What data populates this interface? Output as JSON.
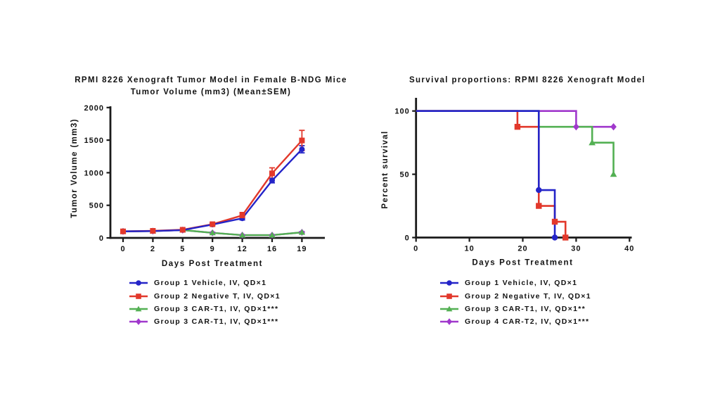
{
  "page": {
    "background": "#ffffff"
  },
  "colors": {
    "group1_blue": "#2424c8",
    "group2_red": "#e2382b",
    "group3_green": "#53b053",
    "group4_purple": "#a038cc",
    "axis_black": "#1a1a1a"
  },
  "chart_data": [
    {
      "type": "line",
      "title": "RPMI 8226 Xenograft Tumor Model in Female B-NDG Mice",
      "subtitle": "Tumor Volume (mm3) (Mean±SEM)",
      "xlabel": "Days Post Treatment",
      "ylabel": "Tumor Volume (mm3)",
      "categories": [
        0,
        2,
        5,
        9,
        12,
        16,
        19
      ],
      "xticklabels": [
        "0",
        "2",
        "5",
        "9",
        "12",
        "16",
        "19"
      ],
      "ylim": [
        0,
        2000
      ],
      "yticks": [
        0,
        500,
        1000,
        1500,
        2000
      ],
      "grid": false,
      "legend_position": "bottom",
      "error_bars": "SEM",
      "series": [
        {
          "name": "Group 1 Vehicle, IV, QD×1",
          "color": "#2424c8",
          "marker": "circle",
          "values": [
            100,
            105,
            120,
            205,
            300,
            880,
            1360
          ],
          "sem": [
            6,
            6,
            8,
            12,
            25,
            35,
            55
          ]
        },
        {
          "name": "Group 2 Negative T, IV, QD×1",
          "color": "#e2382b",
          "marker": "square",
          "values": [
            100,
            108,
            125,
            210,
            345,
            990,
            1495
          ],
          "sem": [
            6,
            6,
            10,
            18,
            45,
            85,
            155
          ]
        },
        {
          "name": "Group 3 CAR-T1, IV, QD×1***",
          "color": "#53b053",
          "marker": "triangle",
          "values": [
            100,
            105,
            120,
            78,
            42,
            42,
            85
          ],
          "sem": [
            5,
            5,
            8,
            8,
            5,
            5,
            10
          ]
        },
        {
          "name": "Group 3 CAR-T1, IV, QD×1***",
          "color": "#a038cc",
          "marker": "diamond",
          "values": [
            100,
            105,
            120,
            78,
            42,
            42,
            85
          ],
          "sem": [
            5,
            5,
            8,
            8,
            5,
            5,
            10
          ]
        }
      ]
    },
    {
      "type": "step",
      "subtype": "kaplan-meier",
      "title": "Survival proportions: RPMI 8226 Xenograft Model",
      "xlabel": "Days Post Treatment",
      "ylabel": "Percent survival",
      "xlim": [
        0,
        40
      ],
      "xticks": [
        0,
        10,
        20,
        30,
        40
      ],
      "ylim": [
        0,
        100
      ],
      "yticks": [
        0,
        50,
        100
      ],
      "grid": false,
      "legend_position": "bottom",
      "series": [
        {
          "name": "Group 1 Vehicle, IV, QD×1",
          "color": "#2424c8",
          "marker": "circle",
          "points": [
            [
              0,
              100
            ],
            [
              23,
              100
            ],
            [
              23,
              37.5
            ],
            [
              26,
              37.5
            ],
            [
              26,
              0
            ]
          ],
          "marker_points": [
            [
              23,
              37.5
            ],
            [
              26,
              0
            ]
          ]
        },
        {
          "name": "Group 2 Negative T, IV, QD×1",
          "color": "#e2382b",
          "marker": "square",
          "points": [
            [
              0,
              100
            ],
            [
              19,
              100
            ],
            [
              19,
              87.5
            ],
            [
              23,
              87.5
            ],
            [
              23,
              25
            ],
            [
              26,
              25
            ],
            [
              26,
              12.5
            ],
            [
              28,
              12.5
            ],
            [
              28,
              0
            ]
          ],
          "marker_points": [
            [
              19,
              87.5
            ],
            [
              23,
              25
            ],
            [
              26,
              12.5
            ],
            [
              28,
              0
            ]
          ]
        },
        {
          "name": "Group 3 CAR-T1, IV, QD×1**",
          "color": "#53b053",
          "marker": "triangle",
          "points": [
            [
              0,
              100
            ],
            [
              23,
              100
            ],
            [
              23,
              87.5
            ],
            [
              33,
              87.5
            ],
            [
              33,
              75
            ],
            [
              37,
              75
            ],
            [
              37,
              50
            ]
          ],
          "marker_points": [
            [
              33,
              75
            ],
            [
              37,
              50
            ]
          ]
        },
        {
          "name": "Group 4 CAR-T2, IV, QD×1***",
          "color": "#a038cc",
          "marker": "diamond",
          "points": [
            [
              0,
              100
            ],
            [
              30,
              100
            ],
            [
              30,
              87.5
            ],
            [
              37,
              87.5
            ]
          ],
          "marker_points": [
            [
              30,
              87.5
            ],
            [
              37,
              87.5
            ]
          ]
        }
      ]
    }
  ]
}
